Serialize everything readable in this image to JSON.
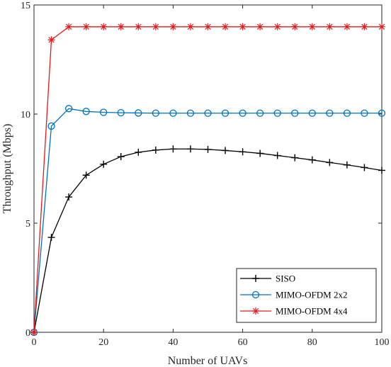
{
  "chart_data": {
    "type": "line",
    "xlabel": "Number of UAVs",
    "ylabel": "Throughput (Mbps)",
    "xlim": [
      0,
      100
    ],
    "ylim": [
      0,
      15
    ],
    "xticks": [
      0,
      20,
      40,
      60,
      80,
      100
    ],
    "yticks": [
      0,
      5,
      10,
      15
    ],
    "grid": false,
    "legend_position": "bottom-right",
    "x": [
      0,
      5,
      10,
      15,
      20,
      25,
      30,
      35,
      40,
      45,
      50,
      55,
      60,
      65,
      70,
      75,
      80,
      85,
      90,
      95,
      100
    ],
    "series": [
      {
        "name": "SISO",
        "color": "#000000",
        "marker": "plus",
        "values": [
          0,
          4.35,
          6.2,
          7.2,
          7.7,
          8.05,
          8.25,
          8.35,
          8.4,
          8.4,
          8.38,
          8.33,
          8.27,
          8.2,
          8.1,
          8.0,
          7.9,
          7.78,
          7.67,
          7.55,
          7.42
        ]
      },
      {
        "name": "MIMO-OFDM 2x2",
        "color": "#0072BD",
        "marker": "circle",
        "values": [
          0,
          9.45,
          10.25,
          10.12,
          10.08,
          10.06,
          10.05,
          10.04,
          10.04,
          10.04,
          10.04,
          10.04,
          10.04,
          10.04,
          10.04,
          10.04,
          10.04,
          10.04,
          10.04,
          10.04,
          10.04
        ]
      },
      {
        "name": "MIMO-OFDM 4x4",
        "color": "#E41A1C",
        "marker": "asterisk",
        "values": [
          0,
          13.4,
          14.0,
          14.0,
          14.0,
          14.0,
          14.0,
          14.0,
          14.0,
          14.0,
          14.0,
          14.0,
          14.0,
          14.0,
          14.0,
          14.0,
          14.0,
          14.0,
          14.0,
          14.0,
          14.0
        ]
      }
    ]
  }
}
